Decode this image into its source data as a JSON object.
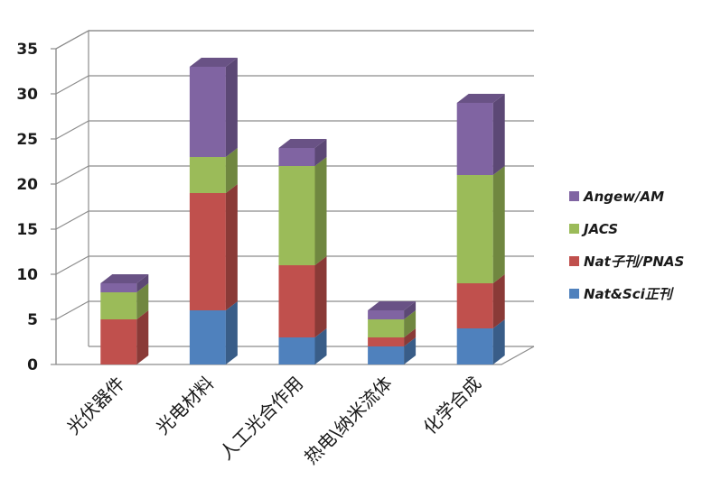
{
  "chart_data": {
    "type": "bar",
    "stacked": true,
    "style": "3d",
    "categories": [
      "光伏器件",
      "光电材料",
      "人工光合作用",
      "热电\\纳米流体",
      "化学合成"
    ],
    "series": [
      {
        "name": "Nat&Sci正刊",
        "color": "#4f81bd",
        "values": [
          0,
          6,
          3,
          2,
          4
        ]
      },
      {
        "name": "Nat子刊/PNAS",
        "color": "#c0504d",
        "values": [
          5,
          13,
          8,
          1,
          5
        ]
      },
      {
        "name": "JACS",
        "color": "#9bbb59",
        "values": [
          3,
          4,
          11,
          2,
          12
        ]
      },
      {
        "name": "Angew/AM",
        "color": "#8064a2",
        "values": [
          1,
          10,
          2,
          1,
          8
        ]
      }
    ],
    "ylim": [
      0,
      35
    ],
    "yticks": [
      0,
      5,
      10,
      15,
      20,
      25,
      30,
      35
    ],
    "grid": true,
    "legend_position": "right"
  }
}
